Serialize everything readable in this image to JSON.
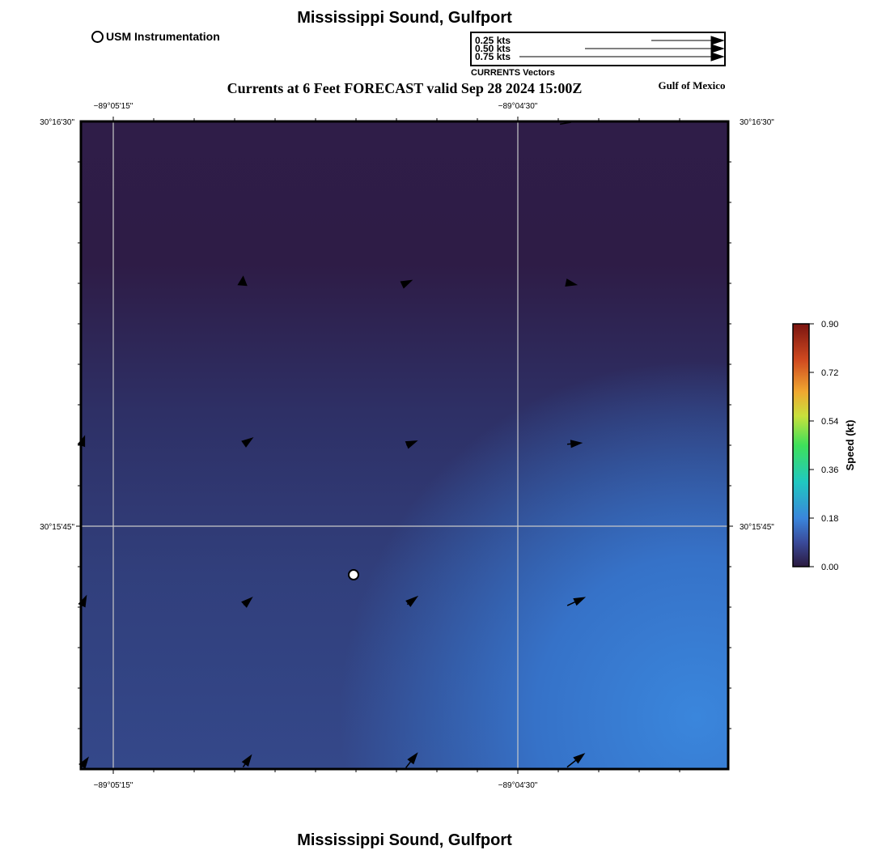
{
  "title": "Mississippi Sound, Gulfport",
  "footer_title": "Mississippi Sound, Gulfport",
  "subtitle": "Currents at 6 Feet FORECAST valid Sep 28 2024 15:00Z",
  "region_label": "Gulf of Mexico",
  "legend": {
    "station_label": "USM Instrumentation",
    "vector_scale": [
      "0.25 kts",
      "0.50 kts",
      "0.75 kts"
    ],
    "vector_caption": "CURRENTS Vectors"
  },
  "axes": {
    "x_top_labels": [
      "−89°05'15\"",
      "−89°04'30\""
    ],
    "x_bottom_labels": [
      "−89°05'15\"",
      "−89°04'30\""
    ],
    "y_left_labels": [
      "30°16'30\"",
      "30°15'45\""
    ],
    "y_right_labels": [
      "30°16'30\"",
      "30°15'45\""
    ]
  },
  "colorbar": {
    "label": "Speed (kt)",
    "ticks": [
      "0.90",
      "0.72",
      "0.54",
      "0.36",
      "0.18",
      "0.00"
    ],
    "min": 0.0,
    "max": 0.9
  },
  "colors": {
    "grid_line": "#c8c8c8",
    "station_marker": "#ffffff",
    "vector": "#000000"
  }
}
